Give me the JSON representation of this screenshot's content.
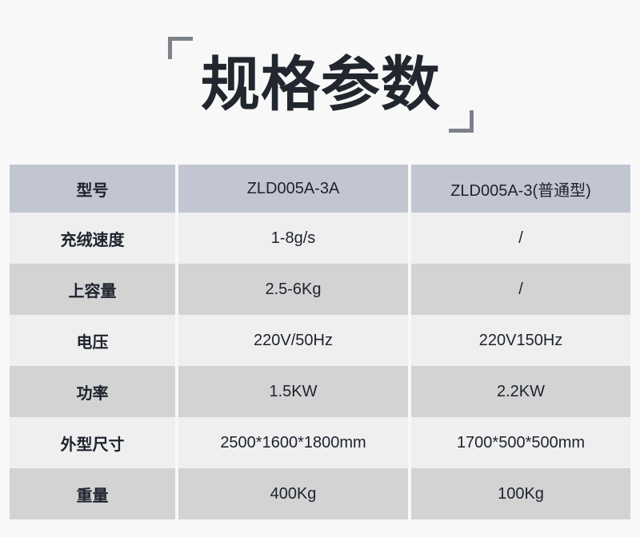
{
  "title": {
    "text": "规格参数"
  },
  "colors": {
    "page-bg": "#f8f8f8",
    "header-bg": "#c2c6d2",
    "row-light": "#efeff0",
    "row-dark": "#d3d3d4",
    "text": "#1d222c",
    "title": "#22262e",
    "bracket": "#7d828a"
  },
  "table": {
    "header": {
      "cells": [
        "型号",
        "ZLD005A-3A",
        "ZLD005A-3(普通型)"
      ]
    },
    "rows": [
      {
        "label": "充绒速度",
        "value1": "1-8g/s",
        "value2": "/"
      },
      {
        "label": "上容量",
        "value1": "2.5-6Kg",
        "value2": "/"
      },
      {
        "label": "电压",
        "value1": "220V/50Hz",
        "value2": "220V150Hz"
      },
      {
        "label": "功率",
        "value1": "1.5KW",
        "value2": "2.2KW"
      },
      {
        "label": "外型尺寸",
        "value1": "2500*1600*1800mm",
        "value2": "1700*500*500mm"
      },
      {
        "label": "重量",
        "value1": "400Kg",
        "value2": "100Kg"
      }
    ]
  }
}
